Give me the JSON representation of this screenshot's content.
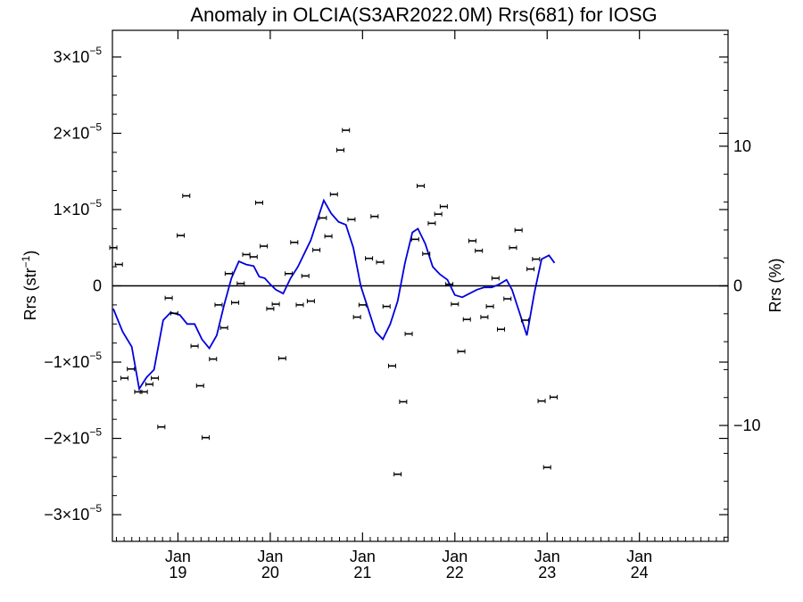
{
  "chart_data": {
    "type": "scatter",
    "title": "Anomaly in OLCIA(S3AR2022.0M) Rrs(681) for IOSG",
    "ylabel_left": {
      "main": "Rrs (str",
      "sup": "−1",
      "end": ")"
    },
    "ylabel_right": "Rrs (%)",
    "ylim": [
      -3.35e-05,
      3.35e-05
    ],
    "ylim_right": [
      -18.3,
      18.3
    ],
    "x_range_years": [
      2018.29,
      2024.96
    ],
    "grid": false,
    "legend": "none",
    "y_ticks_left": [
      {
        "value": -3e-05,
        "mant": "−3×10",
        "exp": "−5"
      },
      {
        "value": -2e-05,
        "mant": "−2×10",
        "exp": "−5"
      },
      {
        "value": -1e-05,
        "mant": "−1×10",
        "exp": "−5"
      },
      {
        "value": 0,
        "mant": "0",
        "exp": ""
      },
      {
        "value": 1e-05,
        "mant": "1×10",
        "exp": "−5"
      },
      {
        "value": 2e-05,
        "mant": "2×10",
        "exp": "−5"
      },
      {
        "value": 3e-05,
        "mant": "3×10",
        "exp": "−5"
      }
    ],
    "y_ticks_right": [
      {
        "value": -10,
        "label": "−10"
      },
      {
        "value": 0,
        "label": "0"
      },
      {
        "value": 10,
        "label": "10"
      }
    ],
    "x_ticks": [
      {
        "t": 2019.0,
        "month": "Jan",
        "year": "19"
      },
      {
        "t": 2020.0,
        "month": "Jan",
        "year": "20"
      },
      {
        "t": 2021.0,
        "month": "Jan",
        "year": "21"
      },
      {
        "t": 2022.0,
        "month": "Jan",
        "year": "22"
      },
      {
        "t": 2023.0,
        "month": "Jan",
        "year": "23"
      },
      {
        "t": 2024.0,
        "month": "Jan",
        "year": "24"
      }
    ],
    "colors": {
      "line": "#0000dd",
      "points": "#000000",
      "axes": "#000000"
    },
    "series": [
      {
        "type": "scatter_errorbar",
        "points": [
          [
            2018.3,
            5e-06
          ],
          [
            2018.36,
            2.8e-06
          ],
          [
            2018.42,
            -1.21e-05
          ],
          [
            2018.49,
            -1.09e-05
          ],
          [
            2018.57,
            -1.39e-05
          ],
          [
            2018.63,
            -1.39e-05
          ],
          [
            2018.69,
            -1.29e-05
          ],
          [
            2018.75,
            -1.21e-05
          ],
          [
            2018.82,
            -1.85e-05
          ],
          [
            2018.9,
            -1.6e-06
          ],
          [
            2018.96,
            -3.6e-06
          ],
          [
            2019.03,
            6.6e-06
          ],
          [
            2019.09,
            1.18e-05
          ],
          [
            2019.18,
            -7.9e-06
          ],
          [
            2019.24,
            -1.31e-05
          ],
          [
            2019.3,
            -1.99e-05
          ],
          [
            2019.38,
            -9.6e-06
          ],
          [
            2019.44,
            -2.5e-06
          ],
          [
            2019.5,
            -5.5e-06
          ],
          [
            2019.55,
            1.6e-06
          ],
          [
            2019.62,
            -2.2e-06
          ],
          [
            2019.68,
            3e-07
          ],
          [
            2019.74,
            4.1e-06
          ],
          [
            2019.82,
            3.8e-06
          ],
          [
            2019.88,
            1.09e-05
          ],
          [
            2019.93,
            5.2e-06
          ],
          [
            2020.0,
            -3e-06
          ],
          [
            2020.06,
            -2.4e-06
          ],
          [
            2020.13,
            -9.5e-06
          ],
          [
            2020.2,
            1.6e-06
          ],
          [
            2020.26,
            5.7e-06
          ],
          [
            2020.32,
            -2.5e-06
          ],
          [
            2020.38,
            1.3e-06
          ],
          [
            2020.44,
            -2e-06
          ],
          [
            2020.5,
            4.7e-06
          ],
          [
            2020.57,
            8.9e-06
          ],
          [
            2020.63,
            6.5e-06
          ],
          [
            2020.69,
            1.2e-05
          ],
          [
            2020.76,
            1.78e-05
          ],
          [
            2020.82,
            2.04e-05
          ],
          [
            2020.88,
            8.7e-06
          ],
          [
            2020.94,
            -4.1e-06
          ],
          [
            2021.0,
            -2.5e-06
          ],
          [
            2021.07,
            3.6e-06
          ],
          [
            2021.13,
            9.1e-06
          ],
          [
            2021.19,
            3.1e-06
          ],
          [
            2021.26,
            -2.7e-06
          ],
          [
            2021.32,
            -1.05e-05
          ],
          [
            2021.38,
            -2.47e-05
          ],
          [
            2021.44,
            -1.52e-05
          ],
          [
            2021.5,
            -6.3e-06
          ],
          [
            2021.57,
            6.1e-06
          ],
          [
            2021.63,
            1.31e-05
          ],
          [
            2021.69,
            4.2e-06
          ],
          [
            2021.75,
            8.2e-06
          ],
          [
            2021.82,
            9.4e-06
          ],
          [
            2021.88,
            1.04e-05
          ],
          [
            2021.94,
            2e-07
          ],
          [
            2022.0,
            -2.4e-06
          ],
          [
            2022.07,
            -8.6e-06
          ],
          [
            2022.13,
            -4.4e-06
          ],
          [
            2022.19,
            5.9e-06
          ],
          [
            2022.26,
            4.6e-06
          ],
          [
            2022.32,
            -4.1e-06
          ],
          [
            2022.38,
            -2.7e-06
          ],
          [
            2022.44,
            1e-06
          ],
          [
            2022.5,
            -5.7e-06
          ],
          [
            2022.57,
            -1.7e-06
          ],
          [
            2022.63,
            5e-06
          ],
          [
            2022.69,
            7.3e-06
          ],
          [
            2022.76,
            -4.5e-06
          ],
          [
            2022.82,
            2.2e-06
          ],
          [
            2022.88,
            3.5e-06
          ],
          [
            2022.94,
            -1.51e-05
          ],
          [
            2023.0,
            -2.38e-05
          ],
          [
            2023.07,
            -1.46e-05
          ]
        ]
      },
      {
        "type": "line",
        "points": [
          [
            2018.3,
            -3e-06
          ],
          [
            2018.4,
            -6e-06
          ],
          [
            2018.5,
            -8e-06
          ],
          [
            2018.58,
            -1.35e-05
          ],
          [
            2018.66,
            -1.2e-05
          ],
          [
            2018.74,
            -1.1e-05
          ],
          [
            2018.84,
            -4.5e-06
          ],
          [
            2018.92,
            -3.5e-06
          ],
          [
            2019.02,
            -3.8e-06
          ],
          [
            2019.1,
            -5e-06
          ],
          [
            2019.18,
            -5e-06
          ],
          [
            2019.26,
            -7e-06
          ],
          [
            2019.34,
            -8.2e-06
          ],
          [
            2019.42,
            -6.5e-06
          ],
          [
            2019.5,
            -2.5e-06
          ],
          [
            2019.58,
            1e-06
          ],
          [
            2019.66,
            3.2e-06
          ],
          [
            2019.74,
            2.8e-06
          ],
          [
            2019.82,
            2.6e-06
          ],
          [
            2019.88,
            1.2e-06
          ],
          [
            2019.94,
            1e-06
          ],
          [
            2020.0,
            2e-07
          ],
          [
            2020.06,
            -5e-07
          ],
          [
            2020.14,
            -1e-06
          ],
          [
            2020.22,
            1e-06
          ],
          [
            2020.3,
            2.5e-06
          ],
          [
            2020.36,
            4e-06
          ],
          [
            2020.44,
            6e-06
          ],
          [
            2020.52,
            9e-06
          ],
          [
            2020.58,
            1.12e-05
          ],
          [
            2020.66,
            9.5e-06
          ],
          [
            2020.74,
            8.4e-06
          ],
          [
            2020.82,
            8e-06
          ],
          [
            2020.9,
            5e-06
          ],
          [
            2020.98,
            0.0
          ],
          [
            2021.06,
            -3e-06
          ],
          [
            2021.14,
            -6e-06
          ],
          [
            2021.22,
            -7e-06
          ],
          [
            2021.3,
            -5e-06
          ],
          [
            2021.38,
            -2e-06
          ],
          [
            2021.46,
            3e-06
          ],
          [
            2021.54,
            7e-06
          ],
          [
            2021.6,
            7.5e-06
          ],
          [
            2021.68,
            5.5e-06
          ],
          [
            2021.76,
            2.5e-06
          ],
          [
            2021.84,
            1.5e-06
          ],
          [
            2021.92,
            8e-07
          ],
          [
            2022.0,
            -1.2e-06
          ],
          [
            2022.08,
            -1.5e-06
          ],
          [
            2022.16,
            -1e-06
          ],
          [
            2022.24,
            -5e-07
          ],
          [
            2022.32,
            -2e-07
          ],
          [
            2022.4,
            -2e-07
          ],
          [
            2022.48,
            2e-07
          ],
          [
            2022.56,
            8e-07
          ],
          [
            2022.62,
            -5e-07
          ],
          [
            2022.7,
            -3.5e-06
          ],
          [
            2022.78,
            -6.5e-06
          ],
          [
            2022.86,
            -1e-06
          ],
          [
            2022.94,
            3.5e-06
          ],
          [
            2023.02,
            4e-06
          ],
          [
            2023.08,
            3e-06
          ]
        ]
      }
    ]
  }
}
